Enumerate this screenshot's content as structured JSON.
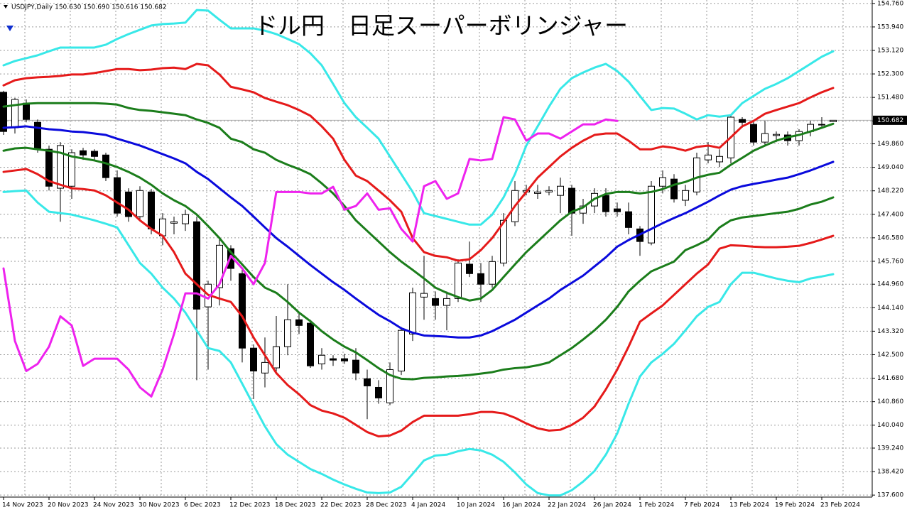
{
  "chart_data": {
    "type": "candlestick",
    "title": "ドル円　日足スーパーボリンジャー",
    "header": "USDJPY,Daily  150.630 150.690 150.616 150.682",
    "categories": [
      "14 Nov 2023",
      null,
      null,
      null,
      "20 Nov 2023",
      null,
      null,
      null,
      "24 Nov 2023",
      null,
      null,
      null,
      "30 Nov 2023",
      null,
      null,
      null,
      "6 Dec 2023",
      null,
      null,
      null,
      "12 Dec 2023",
      null,
      null,
      null,
      "18 Dec 2023",
      null,
      null,
      null,
      "22 Dec 2023",
      null,
      null,
      null,
      "28 Dec 2023",
      null,
      null,
      null,
      "4 Jan 2024",
      null,
      null,
      null,
      "10 Jan 2024",
      null,
      null,
      null,
      "16 Jan 2024",
      null,
      null,
      null,
      "22 Jan 2024",
      null,
      null,
      null,
      "26 Jan 2024",
      null,
      null,
      null,
      "1 Feb 2024",
      null,
      null,
      null,
      "7 Feb 2024",
      null,
      null,
      null,
      "13 Feb 2024",
      null,
      null,
      null,
      "19 Feb 2024",
      null,
      null,
      null,
      "23 Feb 2024",
      null
    ],
    "open": [
      151.66,
      150.42,
      151.28,
      150.61,
      149.67,
      148.31,
      148.38,
      149.62,
      149.6,
      149.47,
      148.68,
      148.18,
      147.32,
      148.18,
      146.65,
      147.09,
      147.07,
      147.14,
      144.17,
      144.84,
      146.2,
      145.33,
      142.73,
      141.86,
      142.04,
      142.78,
      143.72,
      143.6,
      142.18,
      142.36,
      142.36,
      142.31,
      141.66,
      141.36,
      140.82,
      141.93,
      143.22,
      144.51,
      144.46,
      144.22,
      144.46,
      145.66,
      145.33,
      144.96,
      145.7,
      147.14,
      148.18,
      148.13,
      148.18,
      148.06,
      148.31,
      147.44,
      147.69,
      148.06,
      147.59,
      147.49,
      146.89,
      146.4,
      148.38,
      148.63,
      147.89,
      148.18,
      149.3,
      149.23,
      149.37,
      150.71,
      150.54,
      149.92,
      150.15,
      150.17,
      149.97,
      150.29,
      150.52,
      150.63
    ],
    "high": [
      151.71,
      151.46,
      151.41,
      150.71,
      149.8,
      149.92,
      149.67,
      149.72,
      149.67,
      149.55,
      148.93,
      148.31,
      148.38,
      148.28,
      147.44,
      147.32,
      147.56,
      147.32,
      145.08,
      146.57,
      146.32,
      145.51,
      142.86,
      143.1,
      143.85,
      144.96,
      143.97,
      143.72,
      142.73,
      142.48,
      142.53,
      142.73,
      141.98,
      141.61,
      142.23,
      143.47,
      144.84,
      145.95,
      144.71,
      144.71,
      145.83,
      146.45,
      145.7,
      145.95,
      147.44,
      148.56,
      148.43,
      148.43,
      148.38,
      148.68,
      148.43,
      147.94,
      148.31,
      148.31,
      147.81,
      147.81,
      146.99,
      148.56,
      148.93,
      148.8,
      148.43,
      149.55,
      149.92,
      149.67,
      150.86,
      150.79,
      150.66,
      150.66,
      150.29,
      150.29,
      150.37,
      150.66,
      150.79,
      150.69
    ],
    "low": [
      150.17,
      150.22,
      150.61,
      149.55,
      148.23,
      147.14,
      147.94,
      149.3,
      149.3,
      148.56,
      147.32,
      147.14,
      147.19,
      146.7,
      146.32,
      146.7,
      146.82,
      141.61,
      141.98,
      144.22,
      145.08,
      142.23,
      140.95,
      141.36,
      141.86,
      142.48,
      143.22,
      142.04,
      141.98,
      142.11,
      142.18,
      141.61,
      140.25,
      140.79,
      140.74,
      141.79,
      142.98,
      143.72,
      143.72,
      143.35,
      144.34,
      145.21,
      144.34,
      144.84,
      145.58,
      146.99,
      148.06,
      147.94,
      148.06,
      147.44,
      146.65,
      147.07,
      147.44,
      147.32,
      147.32,
      146.7,
      145.95,
      146.32,
      148.13,
      147.81,
      147.69,
      148.06,
      149.18,
      149.05,
      149.18,
      150.42,
      149.8,
      149.8,
      149.92,
      149.8,
      149.8,
      150.12,
      150.42,
      150.616
    ],
    "close": [
      150.29,
      151.41,
      150.71,
      149.67,
      148.38,
      149.8,
      149.55,
      149.47,
      149.42,
      148.68,
      147.44,
      147.32,
      148.23,
      146.89,
      147.24,
      147.14,
      147.39,
      144.09,
      144.96,
      146.32,
      145.51,
      142.73,
      141.93,
      142.23,
      142.78,
      143.72,
      143.52,
      142.11,
      142.48,
      142.31,
      142.28,
      141.86,
      141.41,
      140.99,
      141.98,
      143.35,
      144.66,
      144.64,
      144.22,
      144.46,
      145.7,
      145.33,
      144.96,
      145.75,
      147.19,
      148.23,
      148.23,
      148.18,
      148.23,
      148.38,
      147.44,
      147.69,
      148.13,
      147.49,
      147.49,
      146.94,
      146.45,
      148.38,
      148.68,
      147.94,
      148.23,
      149.37,
      149.47,
      149.42,
      150.79,
      150.61,
      149.92,
      150.22,
      150.19,
      149.97,
      150.29,
      150.54,
      150.54,
      150.682
    ],
    "up_color": "#ffffff",
    "down_color": "#000000",
    "series": [
      {
        "color": "#38e8e8",
        "values": [
          152.6,
          152.75,
          152.85,
          152.95,
          153.09,
          153.22,
          153.22,
          153.22,
          153.22,
          153.32,
          153.52,
          153.69,
          153.84,
          153.99,
          154.04,
          154.06,
          154.09,
          154.53,
          154.51,
          154.19,
          153.89,
          153.89,
          153.89,
          153.81,
          153.69,
          153.52,
          153.34,
          153.02,
          152.6,
          151.95,
          151.28,
          150.79,
          150.42,
          150.04,
          149.42,
          148.8,
          148.18,
          147.44,
          147.34,
          147.24,
          147.14,
          147.04,
          147.04,
          147.39,
          147.99,
          148.8,
          149.8,
          150.47,
          151.16,
          151.78,
          152.15,
          152.35,
          152.52,
          152.65,
          152.4,
          152.03,
          151.53,
          151.04,
          151.11,
          151.09,
          150.91,
          150.71,
          150.86,
          150.81,
          150.86,
          151.28,
          151.53,
          151.78,
          151.95,
          152.15,
          152.4,
          152.65,
          152.9,
          153.09
        ]
      },
      {
        "color": "#e51a1a",
        "values": [
          151.9,
          152.08,
          152.15,
          152.18,
          152.2,
          152.23,
          152.28,
          152.28,
          152.33,
          152.4,
          152.47,
          152.47,
          152.43,
          152.45,
          152.5,
          152.52,
          152.47,
          152.65,
          152.6,
          152.28,
          151.85,
          151.76,
          151.66,
          151.46,
          151.33,
          151.21,
          151.04,
          150.84,
          150.47,
          150.04,
          149.3,
          148.75,
          148.56,
          148.23,
          147.89,
          147.49,
          146.57,
          146.08,
          145.95,
          145.9,
          145.78,
          145.83,
          146.15,
          146.57,
          147.12,
          147.69,
          148.18,
          148.68,
          149.05,
          149.42,
          149.72,
          149.97,
          150.17,
          150.22,
          150.22,
          149.97,
          149.67,
          149.67,
          149.77,
          149.72,
          149.62,
          149.75,
          149.8,
          149.72,
          150.09,
          150.47,
          150.66,
          150.91,
          151.04,
          151.16,
          151.28,
          151.48,
          151.66,
          151.81
        ]
      },
      {
        "color": "#1b7d1b",
        "values": [
          151.16,
          151.21,
          151.26,
          151.28,
          151.28,
          151.28,
          151.28,
          151.28,
          151.28,
          151.26,
          151.23,
          151.11,
          151.04,
          151.01,
          150.96,
          150.91,
          150.86,
          150.71,
          150.59,
          150.42,
          150.04,
          149.92,
          149.67,
          149.55,
          149.3,
          149.13,
          148.98,
          148.8,
          148.48,
          148.13,
          147.69,
          147.19,
          146.82,
          146.45,
          146.08,
          145.75,
          145.46,
          145.16,
          144.84,
          144.66,
          144.51,
          144.39,
          144.46,
          144.76,
          145.21,
          145.65,
          146.08,
          146.45,
          146.82,
          147.19,
          147.49,
          147.64,
          147.94,
          148.11,
          148.18,
          148.18,
          148.13,
          148.18,
          148.28,
          148.43,
          148.53,
          148.68,
          148.78,
          148.85,
          149.13,
          149.37,
          149.62,
          149.8,
          149.97,
          150.09,
          150.17,
          150.29,
          150.42,
          150.56
        ]
      },
      {
        "color": "#0a0adc",
        "values": [
          150.42,
          150.44,
          150.47,
          150.42,
          150.37,
          150.34,
          150.29,
          150.27,
          150.22,
          150.17,
          150.04,
          149.92,
          149.8,
          149.65,
          149.5,
          149.35,
          149.18,
          148.88,
          148.63,
          148.31,
          147.99,
          147.69,
          147.32,
          146.94,
          146.57,
          146.27,
          145.95,
          145.63,
          145.33,
          145.03,
          144.76,
          144.46,
          144.17,
          143.89,
          143.67,
          143.42,
          143.27,
          143.17,
          143.15,
          143.13,
          143.1,
          143.1,
          143.17,
          143.32,
          143.52,
          143.72,
          143.97,
          144.22,
          144.46,
          144.76,
          145.01,
          145.26,
          145.58,
          145.9,
          146.27,
          146.5,
          146.7,
          146.89,
          147.09,
          147.27,
          147.44,
          147.64,
          147.84,
          148.06,
          148.26,
          148.38,
          148.46,
          148.53,
          148.61,
          148.68,
          148.8,
          148.93,
          149.08,
          149.23
        ]
      },
      {
        "color": "#1b7d1b",
        "values": [
          149.62,
          149.7,
          149.72,
          149.67,
          149.62,
          149.55,
          149.42,
          149.35,
          149.28,
          149.18,
          149.05,
          148.88,
          148.68,
          148.43,
          148.13,
          147.89,
          147.69,
          147.39,
          146.99,
          146.57,
          146.08,
          145.65,
          145.21,
          144.84,
          144.66,
          144.34,
          143.97,
          143.67,
          143.32,
          143.03,
          142.78,
          142.58,
          142.31,
          142.03,
          141.79,
          141.66,
          141.64,
          141.69,
          141.71,
          141.74,
          141.76,
          141.79,
          141.84,
          141.89,
          141.98,
          142.03,
          142.06,
          142.13,
          142.23,
          142.48,
          142.73,
          143.03,
          143.35,
          143.72,
          144.17,
          144.71,
          145.08,
          145.41,
          145.58,
          145.75,
          146.15,
          146.32,
          146.52,
          146.94,
          147.19,
          147.29,
          147.34,
          147.39,
          147.44,
          147.49,
          147.59,
          147.74,
          147.84,
          147.99
        ]
      },
      {
        "color": "#e51a1a",
        "values": [
          148.88,
          148.93,
          148.98,
          148.8,
          148.56,
          148.43,
          148.31,
          148.28,
          148.23,
          148.06,
          147.81,
          147.56,
          147.19,
          146.89,
          146.65,
          146.08,
          145.33,
          144.96,
          144.59,
          144.46,
          144.34,
          143.84,
          143.1,
          142.48,
          141.86,
          141.44,
          141.12,
          140.74,
          140.55,
          140.45,
          140.3,
          140.05,
          139.8,
          139.65,
          139.68,
          139.85,
          140.15,
          140.37,
          140.37,
          140.37,
          140.37,
          140.42,
          140.5,
          140.5,
          140.45,
          140.3,
          140.1,
          139.93,
          139.85,
          139.88,
          140.05,
          140.3,
          140.69,
          141.29,
          141.98,
          142.78,
          143.65,
          143.94,
          144.22,
          144.59,
          144.96,
          145.33,
          145.65,
          146.2,
          146.32,
          146.3,
          146.27,
          146.25,
          146.25,
          146.27,
          146.3,
          146.4,
          146.52,
          146.65
        ]
      },
      {
        "color": "#38e8e8",
        "values": [
          148.18,
          148.21,
          148.23,
          147.81,
          147.49,
          147.44,
          147.39,
          147.29,
          147.19,
          147.07,
          146.94,
          146.32,
          145.7,
          145.33,
          144.84,
          144.46,
          143.97,
          143.35,
          142.73,
          142.63,
          142.23,
          141.49,
          140.74,
          140.0,
          139.38,
          139.01,
          138.76,
          138.51,
          138.34,
          138.14,
          137.97,
          137.82,
          137.69,
          137.67,
          137.69,
          137.89,
          138.34,
          138.81,
          138.98,
          139.01,
          139.13,
          139.21,
          139.16,
          139.01,
          138.76,
          138.39,
          137.97,
          137.67,
          137.59,
          137.59,
          137.77,
          138.07,
          138.44,
          139.01,
          139.75,
          140.79,
          141.74,
          142.23,
          142.53,
          142.88,
          143.35,
          143.84,
          144.17,
          144.34,
          144.96,
          145.36,
          145.36,
          145.26,
          145.16,
          145.08,
          145.03,
          145.16,
          145.23,
          145.31
        ]
      },
      {
        "color": "#ee22ee",
        "values": [
          145.51,
          142.98,
          141.93,
          142.18,
          142.78,
          143.84,
          143.52,
          142.11,
          142.36,
          142.36,
          142.36,
          141.98,
          141.36,
          141.04,
          141.98,
          143.22,
          144.64,
          144.64,
          144.46,
          144.96,
          145.95,
          145.51,
          144.96,
          145.7,
          148.18,
          148.18,
          148.18,
          148.13,
          148.13,
          148.36,
          147.56,
          147.69,
          148.13,
          147.56,
          147.61,
          146.89,
          146.45,
          148.38,
          148.56,
          147.94,
          148.13,
          149.33,
          149.28,
          149.33,
          150.79,
          150.71,
          149.97,
          150.22,
          150.22,
          150.04,
          150.29,
          150.54,
          150.54,
          150.71,
          150.66,
          null,
          null,
          null,
          null,
          null,
          null,
          null,
          null,
          null,
          null,
          null,
          null,
          null,
          null,
          null,
          null,
          null,
          null,
          null
        ]
      }
    ],
    "last_price": 150.682,
    "ylim": [
      137.53,
      154.88
    ],
    "yticks": [
      {
        "value": 154.76,
        "label": "154.760"
      },
      {
        "value": 153.94,
        "label": "153.940"
      },
      {
        "value": 153.12,
        "label": "153.120"
      },
      {
        "value": 152.3,
        "label": "152.300"
      },
      {
        "value": 151.48,
        "label": "151.480"
      },
      {
        "value": 150.66,
        "label": "150.660"
      },
      {
        "value": 149.86,
        "label": "149.860"
      },
      {
        "value": 149.04,
        "label": "149.040"
      },
      {
        "value": 148.22,
        "label": "148.220"
      },
      {
        "value": 147.4,
        "label": "147.400"
      },
      {
        "value": 146.58,
        "label": "146.580"
      },
      {
        "value": 145.76,
        "label": "145.760"
      },
      {
        "value": 144.96,
        "label": "144.960"
      },
      {
        "value": 144.14,
        "label": "144.140"
      },
      {
        "value": 143.32,
        "label": "143.320"
      },
      {
        "value": 142.5,
        "label": "142.500"
      },
      {
        "value": 141.68,
        "label": "141.680"
      },
      {
        "value": 140.86,
        "label": "140.860"
      },
      {
        "value": 140.04,
        "label": "140.040"
      },
      {
        "value": 139.24,
        "label": "139.240"
      },
      {
        "value": 138.42,
        "label": "138.420"
      },
      {
        "value": 137.6,
        "label": "137.600"
      }
    ],
    "grid": true
  }
}
